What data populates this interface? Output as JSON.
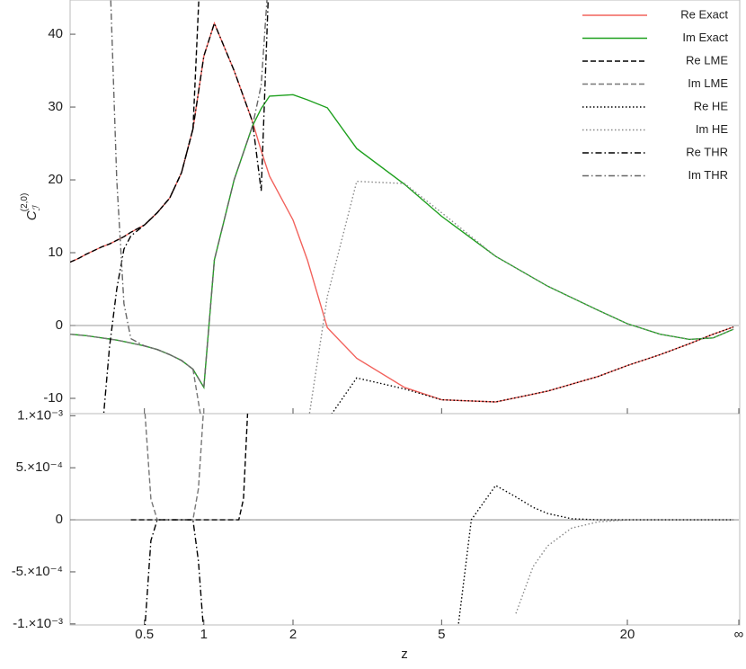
{
  "chart_data": [
    {
      "type": "line",
      "ylabel": "C",
      "ylabel_subscript": "ℐ",
      "ylabel_superscript": "(2,0)",
      "x": [
        0,
        0.05,
        0.1,
        0.2,
        0.25,
        0.3,
        0.35,
        0.4,
        0.5,
        0.6,
        0.7,
        0.8,
        0.9,
        1,
        1.1,
        1.3,
        1.5,
        1.6,
        1.7,
        2,
        2.2,
        2.5,
        3,
        4,
        5,
        7,
        10,
        15,
        20,
        30,
        50,
        100,
        500
      ],
      "xlim": [
        0,
        "Infinity"
      ],
      "ylim": [
        -12.1,
        44.7
      ],
      "yticks": [
        -10,
        0,
        10,
        20,
        30,
        40
      ],
      "legend": "top-right",
      "series": [
        {
          "name": "Re Exact",
          "color": "#f2625c",
          "dash": "solid",
          "values": [
            8.7,
            9.2,
            9.8,
            10.8,
            11.2,
            11.7,
            12.2,
            12.8,
            13.8,
            15.5,
            17.5,
            21,
            27,
            37,
            41.5,
            35,
            28,
            24,
            20.5,
            14.5,
            9,
            -0.3,
            -4.5,
            -8.5,
            -10.2,
            -10.5,
            -9,
            -7,
            -5.5,
            -4,
            -2.5,
            -1.2,
            -0.2
          ]
        },
        {
          "name": "Im Exact",
          "color": "#1ea01e",
          "dash": "solid",
          "values": [
            -1.2,
            -1.3,
            -1.4,
            -1.7,
            -1.85,
            -2,
            -2.2,
            -2.4,
            -2.8,
            -3.3,
            -4,
            -4.8,
            -6,
            -8.5,
            9,
            20,
            27.4,
            29.8,
            31.5,
            31.7,
            31,
            29.9,
            24.3,
            19.4,
            15,
            9.5,
            5.4,
            2.1,
            0.25,
            -1.2,
            -1.9,
            -1.7,
            -0.5
          ]
        },
        {
          "name": "Re LME",
          "color": "#000000",
          "dash": "dashed",
          "values": [
            8.7,
            9.2,
            9.8,
            10.8,
            11.2,
            11.7,
            12.2,
            12.8,
            13.8,
            15.5,
            17.5,
            21,
            27,
            60,
            null,
            null,
            null,
            null,
            null,
            null,
            null,
            null,
            null,
            null,
            null,
            null,
            null,
            null,
            null,
            null,
            null,
            null,
            null
          ]
        },
        {
          "name": "Im LME",
          "color": "#777777",
          "dash": "dashed",
          "values": [
            -1.2,
            -1.3,
            -1.4,
            -1.7,
            -1.85,
            -2,
            -2.2,
            -2.4,
            -2.8,
            -3.3,
            -4,
            -4.8,
            -6,
            -15,
            null,
            null,
            null,
            null,
            null,
            null,
            null,
            null,
            null,
            null,
            null,
            null,
            null,
            null,
            null,
            null,
            null,
            null,
            null
          ]
        },
        {
          "name": "Re HE",
          "color": "#000000",
          "dash": "dotted",
          "values": [
            null,
            null,
            null,
            null,
            null,
            null,
            null,
            null,
            null,
            null,
            null,
            null,
            null,
            null,
            null,
            null,
            null,
            null,
            null,
            null,
            null,
            -13,
            -7.2,
            -8.7,
            -10.2,
            -10.5,
            -9,
            -7,
            -5.5,
            -4,
            -2.5,
            -1.2,
            -0.2
          ]
        },
        {
          "name": "Im HE",
          "color": "#888888",
          "dash": "dotted",
          "values": [
            null,
            null,
            null,
            null,
            null,
            null,
            null,
            null,
            null,
            null,
            null,
            null,
            null,
            null,
            null,
            null,
            null,
            null,
            null,
            null,
            -14,
            4,
            19.8,
            19.5,
            15.5,
            9.5,
            5.4,
            2.1,
            0.25,
            -1.2,
            -1.9,
            -1.7,
            -0.5
          ]
        },
        {
          "name": "Re THR",
          "color": "#000000",
          "dash": "dashdot",
          "values": [
            null,
            null,
            null,
            -15,
            -3,
            5,
            10.5,
            12.3,
            13.8,
            15.5,
            17.5,
            21,
            27,
            37,
            41.5,
            35,
            28,
            18.5,
            50,
            null,
            null,
            null,
            null,
            null,
            null,
            null,
            null,
            null,
            null,
            null,
            null,
            null,
            null
          ]
        },
        {
          "name": "Im THR",
          "color": "#666666",
          "dash": "dashdot",
          "values": [
            null,
            null,
            null,
            null,
            50,
            20,
            3,
            -1.8,
            -2.8,
            -3.3,
            -4,
            -4.8,
            -6,
            -8.5,
            9,
            20,
            27.4,
            33,
            50,
            null,
            null,
            null,
            null,
            null,
            null,
            null,
            null,
            null,
            null,
            null,
            null,
            null,
            null
          ]
        }
      ]
    },
    {
      "type": "line",
      "xlabel": "z",
      "x": [
        0.4,
        0.5,
        0.55,
        0.6,
        0.7,
        0.8,
        0.9,
        0.95,
        1,
        1.2,
        1.35,
        1.4,
        1.45,
        5,
        5.5,
        6,
        7,
        8,
        9,
        10,
        12,
        15,
        20,
        30,
        100,
        500
      ],
      "xlim": [
        0,
        "Infinity"
      ],
      "xticks": [
        0.5,
        1,
        2,
        5,
        20,
        {
          "value": "Infinity",
          "label": "∞"
        }
      ],
      "ylim": [
        -0.00101,
        0.00102
      ],
      "yticks": [
        {
          "value": -0.001,
          "label": "-1.×10⁻³"
        },
        {
          "value": -0.0005,
          "label": "-5.×10⁻⁴"
        },
        0,
        {
          "value": 0.0005,
          "label": "5.×10⁻⁴"
        },
        {
          "value": 0.001,
          "label": "1.×10⁻³"
        }
      ],
      "series": [
        {
          "color": "#000000",
          "dash": "dashed",
          "values": [
            0,
            0,
            0,
            0,
            0,
            0,
            0,
            0,
            0,
            0,
            0,
            0.0002,
            0.0011,
            null,
            null,
            null,
            null,
            null,
            null,
            null,
            null,
            null,
            null,
            null,
            null,
            null
          ]
        },
        {
          "color": "#777777",
          "dash": "dashed",
          "values": [
            null,
            0.0011,
            0.0002,
            0,
            0,
            0,
            0,
            0.0003,
            0.0011,
            null,
            null,
            null,
            null,
            null,
            null,
            null,
            null,
            null,
            null,
            null,
            null,
            null,
            null,
            null,
            null,
            null
          ]
        },
        {
          "color": "#000000",
          "dash": "dashdot",
          "values": [
            null,
            -0.0011,
            -0.0002,
            0,
            0,
            0,
            0,
            -0.0004,
            -0.0011,
            null,
            null,
            null,
            null,
            null,
            null,
            null,
            null,
            null,
            null,
            null,
            null,
            null,
            null,
            null,
            null,
            null
          ]
        },
        {
          "color": "#000000",
          "dash": "dotted",
          "values": [
            null,
            null,
            null,
            null,
            null,
            null,
            null,
            null,
            null,
            null,
            null,
            null,
            null,
            null,
            -0.0011,
            0,
            0.00033,
            0.00022,
            0.00012,
            6e-05,
            1e-05,
            0,
            0,
            0,
            0,
            0
          ]
        },
        {
          "color": "#888888",
          "dash": "dotted",
          "values": [
            null,
            null,
            null,
            null,
            null,
            null,
            null,
            null,
            null,
            null,
            null,
            null,
            null,
            null,
            null,
            null,
            null,
            -0.0009,
            -0.00045,
            -0.00025,
            -8e-05,
            -2e-05,
            0,
            0,
            0,
            0
          ]
        }
      ]
    }
  ]
}
